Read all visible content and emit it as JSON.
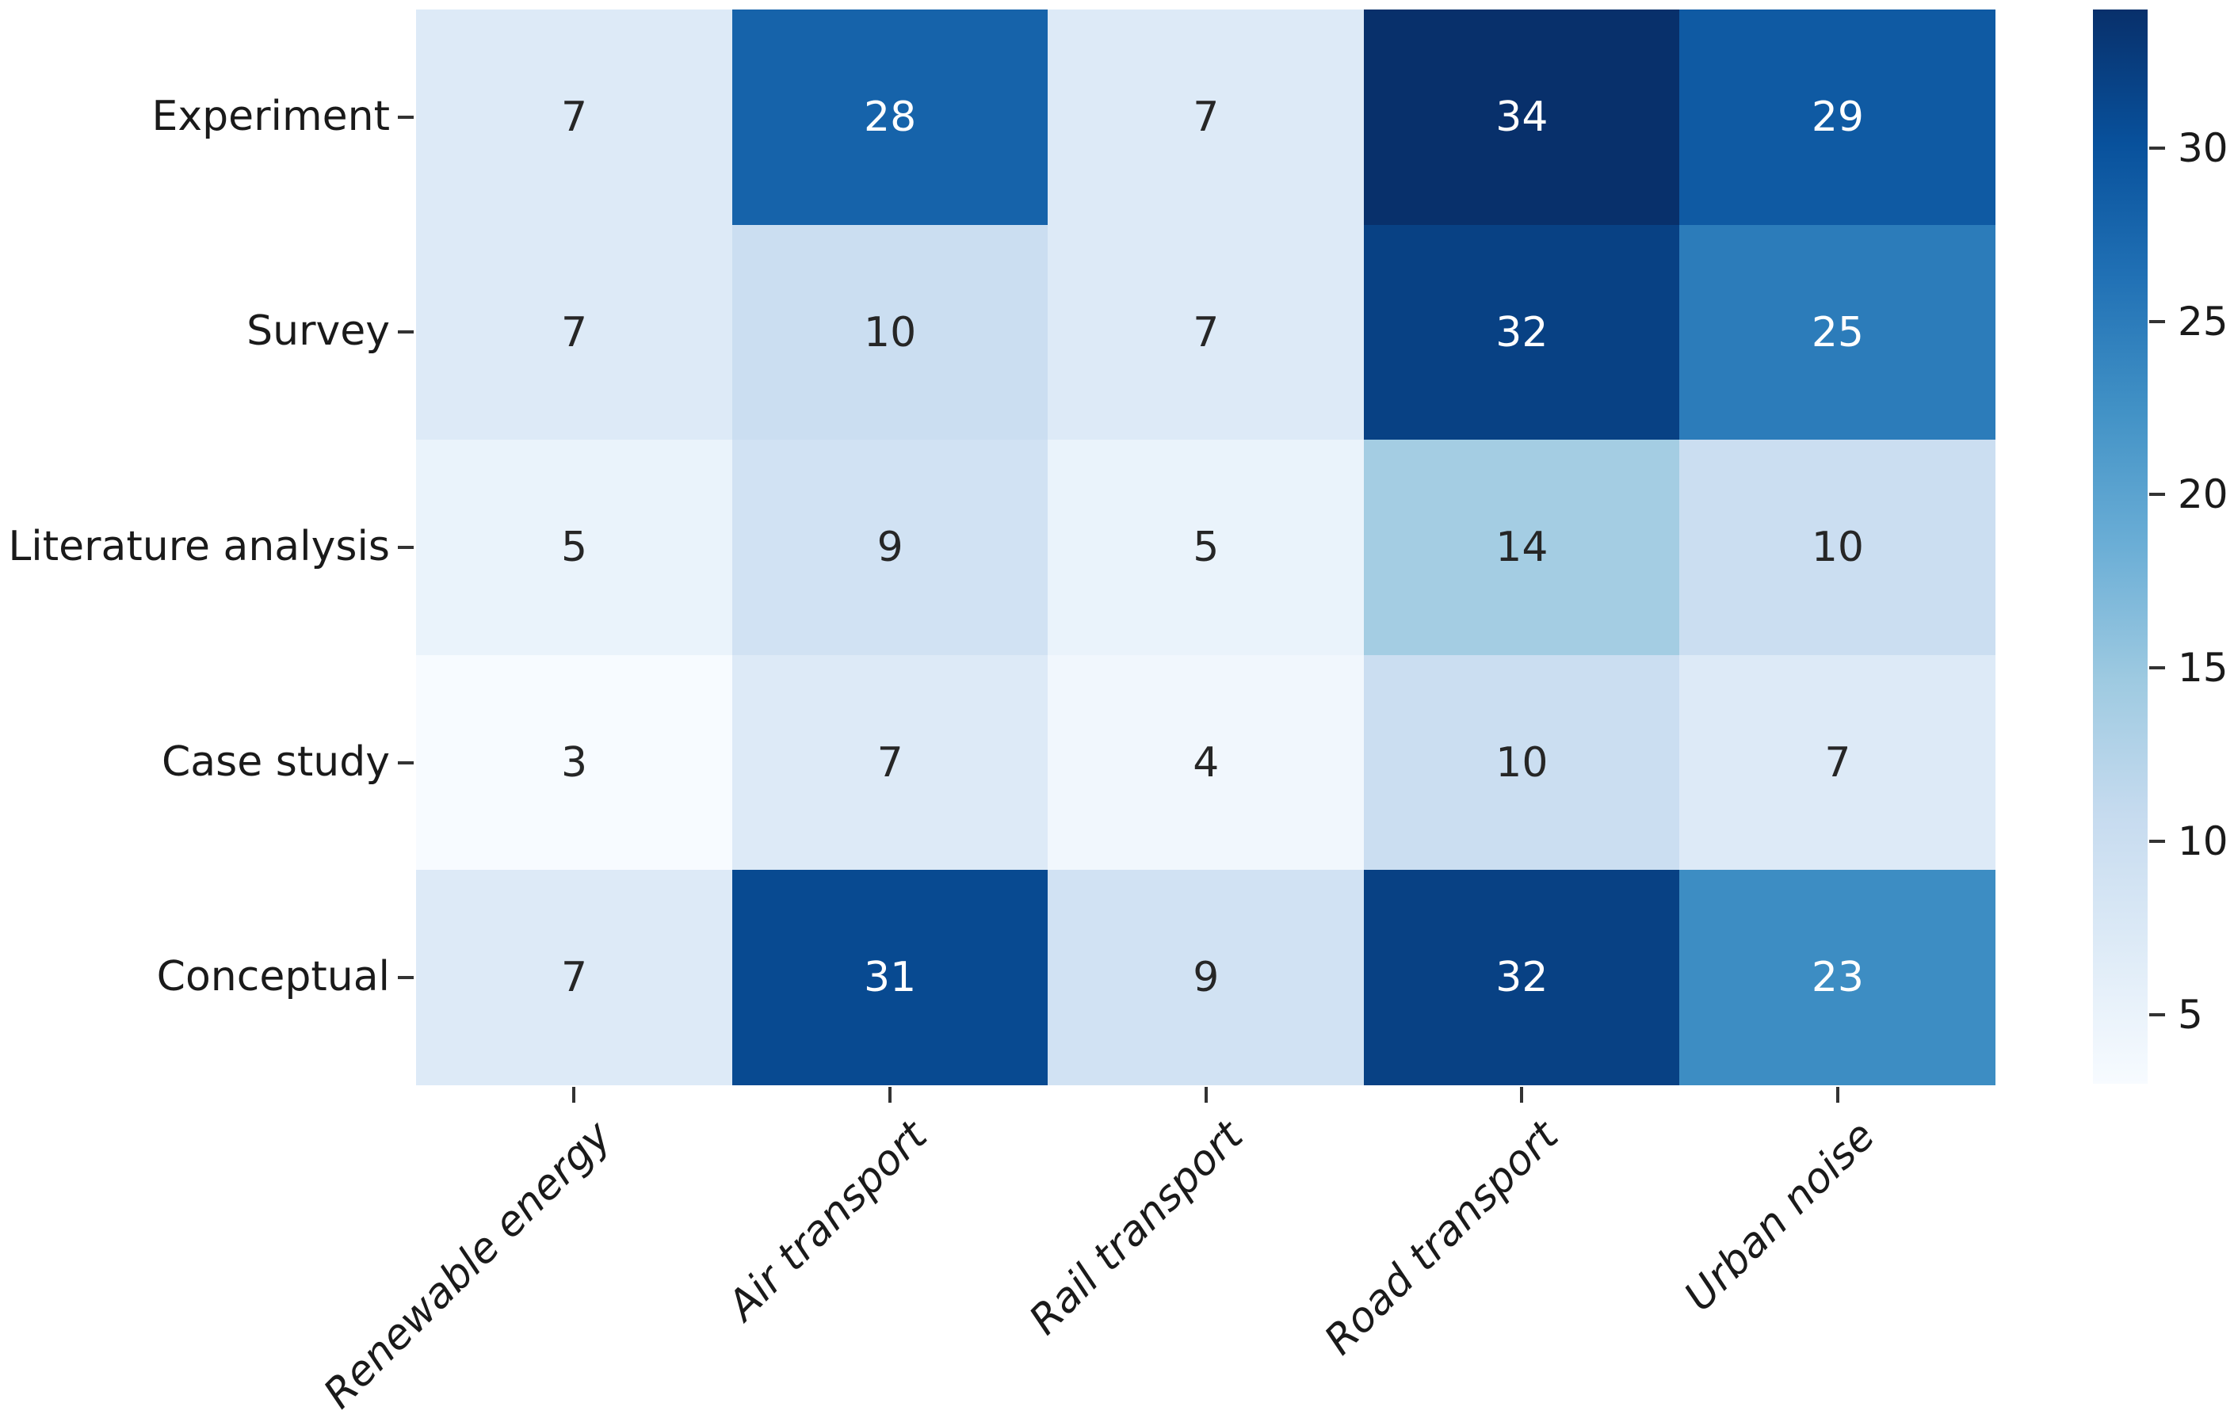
{
  "chart_data": {
    "type": "heatmap",
    "title": "",
    "xlabel": "",
    "ylabel": "",
    "rows": [
      "Experiment",
      "Survey",
      "Literature analysis",
      "Case study",
      "Conceptual"
    ],
    "columns": [
      "Renewable energy",
      "Air transport",
      "Rail transport",
      "Road transport",
      "Urban noise"
    ],
    "values": [
      [
        7,
        28,
        7,
        34,
        29
      ],
      [
        7,
        10,
        7,
        32,
        25
      ],
      [
        5,
        9,
        5,
        14,
        10
      ],
      [
        3,
        7,
        4,
        10,
        7
      ],
      [
        7,
        31,
        9,
        32,
        23
      ]
    ],
    "vmin": 3,
    "vmax": 34,
    "annotations_on": true,
    "grid": false,
    "legend_position": "colorbar-right",
    "colorbar_ticks": [
      5,
      10,
      15,
      20,
      25,
      30
    ],
    "colormap": {
      "name": "Blues",
      "anchors": [
        "#f7fbff",
        "#deebf7",
        "#c6dbef",
        "#9ecae1",
        "#6baed6",
        "#4292c6",
        "#2171b5",
        "#08519c",
        "#08306b"
      ]
    },
    "annotation_text_color_light_cells": "#262626",
    "annotation_text_color_dark_cells": "#ffffff",
    "background_color": "#ffffff",
    "tick_color": "#333333",
    "label_color": "#1a1a1a"
  }
}
